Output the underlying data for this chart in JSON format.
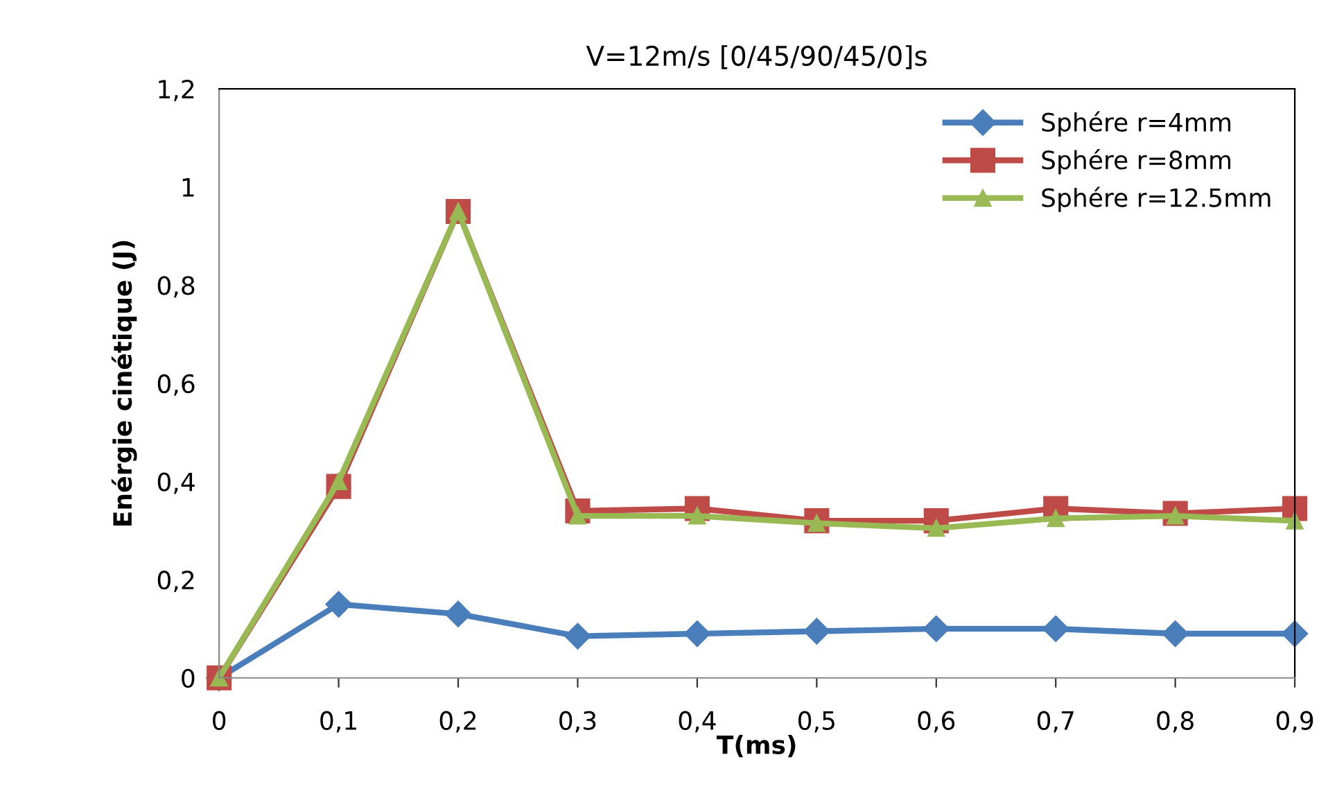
{
  "chart_data": {
    "type": "line",
    "title": "V=12m/s [0/45/90/45/0]s",
    "xlabel": "T(ms)",
    "ylabel": "Enérgie cinétique (J)",
    "x": [
      0,
      0.1,
      0.2,
      0.3,
      0.4,
      0.5,
      0.6,
      0.7,
      0.8,
      0.9
    ],
    "series": [
      {
        "name": "Sphére r=4mm",
        "color": "#4a7ebb",
        "marker": "diamond",
        "values": [
          0,
          0.15,
          0.13,
          0.085,
          0.09,
          0.095,
          0.1,
          0.1,
          0.09,
          0.09
        ]
      },
      {
        "name": "Sphére r=8mm",
        "color": "#be4b48",
        "marker": "square",
        "values": [
          0,
          0.39,
          0.95,
          0.34,
          0.345,
          0.32,
          0.32,
          0.345,
          0.335,
          0.345
        ]
      },
      {
        "name": "Sphére r=12.5mm",
        "color": "#98b954",
        "marker": "triangle",
        "values": [
          0,
          0.4,
          0.95,
          0.33,
          0.33,
          0.315,
          0.305,
          0.325,
          0.33,
          0.32
        ]
      }
    ],
    "xlim": [
      0,
      0.9
    ],
    "ylim": [
      0,
      1.2
    ],
    "xticks": [
      0,
      {
        "value": 0.1,
        "label": "0,1"
      },
      {
        "value": 0.2,
        "label": "0,2"
      },
      {
        "value": 0.3,
        "label": "0,3"
      },
      {
        "value": 0.4,
        "label": "0,4"
      },
      {
        "value": 0.5,
        "label": "0,5"
      },
      {
        "value": 0.6,
        "label": "0,6"
      },
      {
        "value": 0.7,
        "label": "0,7"
      },
      {
        "value": 0.8,
        "label": "0,8"
      },
      {
        "value": 0.9,
        "label": "0,9"
      }
    ],
    "yticks": [
      0,
      {
        "value": 0.2,
        "label": "0,2"
      },
      {
        "value": 0.4,
        "label": "0,4"
      },
      {
        "value": 0.6,
        "label": "0,6"
      },
      {
        "value": 0.8,
        "label": "0,8"
      },
      1,
      {
        "value": 1.2,
        "label": "1,2"
      }
    ],
    "grid": false,
    "legend": "top right",
    "line_style": "solid"
  }
}
